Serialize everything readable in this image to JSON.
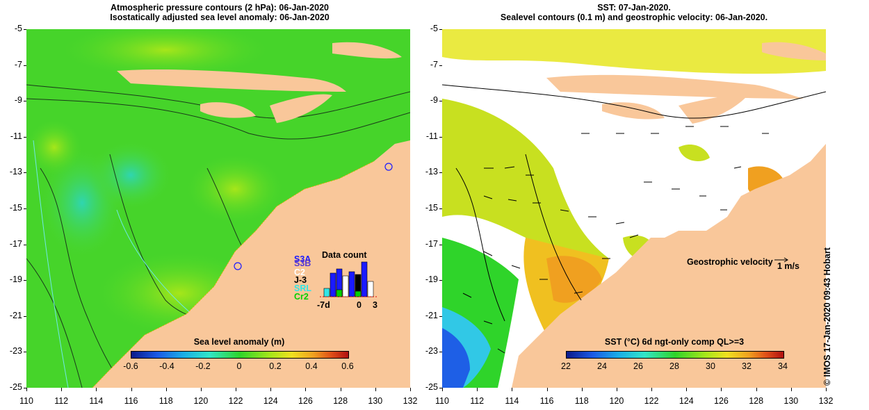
{
  "left_panel": {
    "title_line1": "Atmospheric pressure contours (2 hPa): 06-Jan-2020",
    "title_line2": "Isostatically adjusted sea level anomaly: 06-Jan-2020",
    "colorbar_title": "Sea level anomaly (m)",
    "colorbar_ticks": [
      "-0.6",
      "-0.4",
      "-0.2",
      "0",
      "0.2",
      "0.4",
      "0.6"
    ],
    "data_count": {
      "title": "Data count",
      "satellites": [
        {
          "label": "S3A",
          "color": "#1a1aff"
        },
        {
          "label": "S3B",
          "color": "#5a3ad0"
        },
        {
          "label": "C2",
          "color": "#ffffff"
        },
        {
          "label": "J-3",
          "color": "#000000"
        },
        {
          "label": "SRL",
          "color": "#31e6e6"
        },
        {
          "label": "Cr2",
          "color": "#00d000"
        }
      ],
      "x_start": "-7d",
      "x_mid": "0",
      "x_end": "3"
    }
  },
  "right_panel": {
    "title_line1": "SST: 07-Jan-2020.",
    "title_line2": "Sealevel contours (0.1 m) and geostrophic velocity: 06-Jan-2020.",
    "colorbar_title": "SST (°C) 6d ngt-only comp QL>=3",
    "colorbar_ticks": [
      "22",
      "24",
      "26",
      "28",
      "30",
      "32",
      "34"
    ],
    "velocity_label": "Geostrophic velocity",
    "velocity_scale": "1 m/s"
  },
  "axes": {
    "lat_ticks": [
      "-5",
      "-7",
      "-9",
      "-11",
      "-13",
      "-15",
      "-17",
      "-19",
      "-21",
      "-23",
      "-25"
    ],
    "lon_ticks": [
      "110",
      "112",
      "114",
      "116",
      "118",
      "120",
      "122",
      "124",
      "126",
      "128",
      "130",
      "132"
    ]
  },
  "credit": "© IMOS 17-Jan-2020 09:43 Hobart",
  "colors": {
    "land": "#f9c79a",
    "sla_ocean": "#4fd92a",
    "sst_cold": "#1e5fe6",
    "sst_warm": "#f0a020"
  }
}
